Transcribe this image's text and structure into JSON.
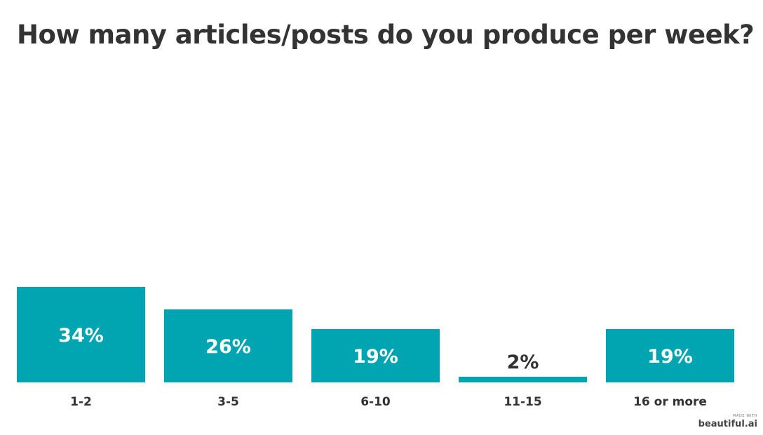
{
  "title": "How many articles/posts do you produce per week?",
  "colors": {
    "bar": "#00a5b1",
    "label_inside": "#ffffff",
    "label_outside": "#333333"
  },
  "chart_data": {
    "type": "bar",
    "title": "How many articles/posts do you produce per week?",
    "categories": [
      "1-2",
      "3-5",
      "6-10",
      "11-15",
      "16 or more"
    ],
    "values": [
      34,
      26,
      19,
      2,
      19
    ],
    "value_labels": [
      "34%",
      "26%",
      "19%",
      "2%",
      "19%"
    ],
    "xlabel": "",
    "ylabel": "",
    "ylim": [
      0,
      34
    ],
    "grid": false,
    "legend": "none"
  },
  "watermark": {
    "small": "MADE WITH",
    "brand": "beautiful.ai"
  }
}
